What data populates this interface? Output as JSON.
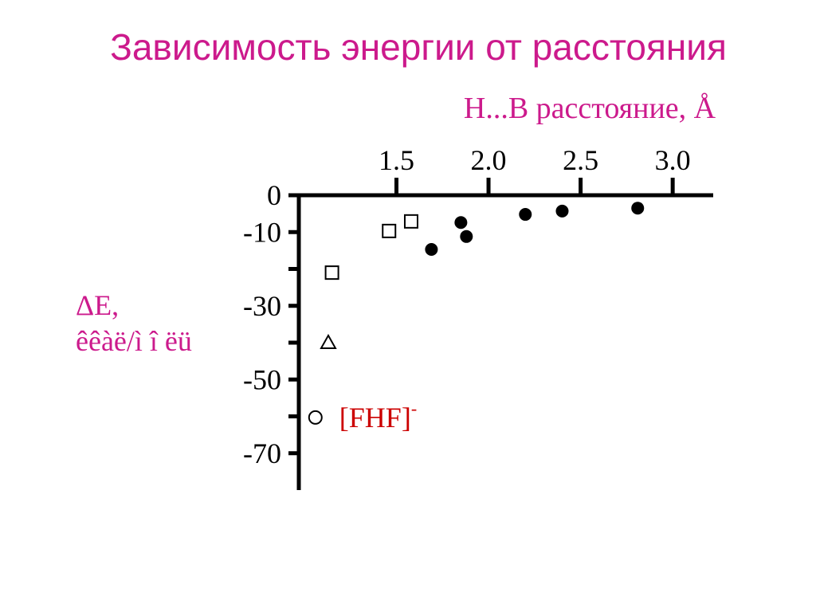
{
  "chart_data": {
    "type": "scatter",
    "title": "Зависимость энергии от расстояния",
    "xlabel": "H...B  расстояние, Å",
    "ylabel": [
      "ΔE,",
      "êêàë/ì î ëü"
    ],
    "xlim": [
      0.97,
      3.22
    ],
    "ylim": [
      -80,
      0
    ],
    "xticks": [
      {
        "value": 1.5,
        "label": "1.5"
      },
      {
        "value": 2.0,
        "label": "2.0"
      },
      {
        "value": 2.5,
        "label": "2.5"
      },
      {
        "value": 3.0,
        "label": "3.0"
      }
    ],
    "yticks": [
      0,
      -10,
      -30,
      -50,
      -70
    ],
    "yminorticks": [
      -20,
      -40,
      -60
    ],
    "title_color": "#cc1a8c",
    "series": [
      {
        "marker": "circle-filled",
        "color": "#000000",
        "x": [
          1.69,
          1.85,
          1.88,
          2.2,
          2.4,
          2.81
        ],
        "y": [
          -14.7,
          -7.4,
          -11.2,
          -5.2,
          -4.3,
          -3.5
        ]
      },
      {
        "marker": "square",
        "color": "#000000",
        "x": [
          1.46,
          1.58,
          1.15
        ],
        "y": [
          -9.7,
          -7.1,
          -21.0
        ]
      },
      {
        "marker": "triangle",
        "color": "#000000",
        "x": [
          1.13
        ],
        "y": [
          -40.0
        ]
      },
      {
        "marker": "circle-open",
        "color": "#000000",
        "name": "[FHF]",
        "name_sup": "-",
        "x": [
          1.06
        ],
        "y": [
          -60.3
        ]
      }
    ]
  }
}
